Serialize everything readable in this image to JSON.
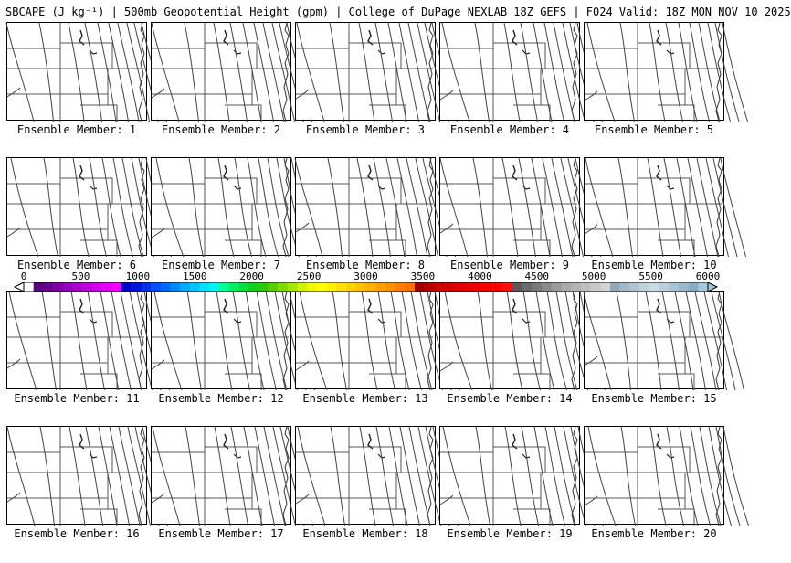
{
  "title": "SBCAPE (J kg⁻¹) | 500mb Geopotential Height (gpm) | College of DuPage NEXLAB 18Z GEFS | F024 Valid: 18Z MON NOV 10 2025",
  "colorbar": {
    "tick_labels": [
      "0",
      "500",
      "1000",
      "1500",
      "2000",
      "2500",
      "3000",
      "3500",
      "4000",
      "4500",
      "5000",
      "5500",
      "6000"
    ],
    "colors": [
      "#ffffff",
      "#5a0078",
      "#6c0090",
      "#8000a8",
      "#9400bc",
      "#a800cc",
      "#bc00dc",
      "#d000ec",
      "#e200f8",
      "#ef00ff",
      "#0000c8",
      "#0014dc",
      "#0030ec",
      "#004cff",
      "#0068ff",
      "#0088ff",
      "#00a8ff",
      "#00c4ff",
      "#00e0ff",
      "#00f4f4",
      "#00ff96",
      "#00f060",
      "#00e040",
      "#10d020",
      "#30c800",
      "#58d000",
      "#80dc00",
      "#a8e800",
      "#d0f400",
      "#f0fa00",
      "#ffff00",
      "#fff000",
      "#ffe000",
      "#ffd000",
      "#ffc000",
      "#ffb000",
      "#ffa000",
      "#ff9000",
      "#ff8000",
      "#ff7000",
      "#a00000",
      "#b40000",
      "#c80000",
      "#d40000",
      "#e00000",
      "#e80000",
      "#f00000",
      "#f80000",
      "#ff0000",
      "#ff1010",
      "#5a5a5a",
      "#6a6a6a",
      "#7a7a7a",
      "#8a8a8a",
      "#9a9a9a",
      "#aaaaaa",
      "#b4b4b4",
      "#bebebe",
      "#c8c8c8",
      "#d2d2d2",
      "#90a8b8",
      "#a0b8c8",
      "#b0c4d0",
      "#c0d0dc",
      "#c8dce4",
      "#b8d0dc",
      "#a8c4d4",
      "#98b8cc",
      "#88acc4",
      "#a8c8d8"
    ]
  },
  "panels": [
    {
      "label": "Ensemble Member: 1"
    },
    {
      "label": "Ensemble Member: 2"
    },
    {
      "label": "Ensemble Member: 3"
    },
    {
      "label": "Ensemble Member: 4"
    },
    {
      "label": "Ensemble Member: 5"
    },
    {
      "label": "Ensemble Member: 6"
    },
    {
      "label": "Ensemble Member: 7"
    },
    {
      "label": "Ensemble Member: 8"
    },
    {
      "label": "Ensemble Member: 9"
    },
    {
      "label": "Ensemble Member: 10"
    },
    {
      "label": "Ensemble Member: 11"
    },
    {
      "label": "Ensemble Member: 12"
    },
    {
      "label": "Ensemble Member: 13"
    },
    {
      "label": "Ensemble Member: 14"
    },
    {
      "label": "Ensemble Member: 15"
    },
    {
      "label": "Ensemble Member: 16"
    },
    {
      "label": "Ensemble Member: 17"
    },
    {
      "label": "Ensemble Member: 18"
    },
    {
      "label": "Ensemble Member: 19"
    },
    {
      "label": "Ensemble Member: 20"
    }
  ]
}
